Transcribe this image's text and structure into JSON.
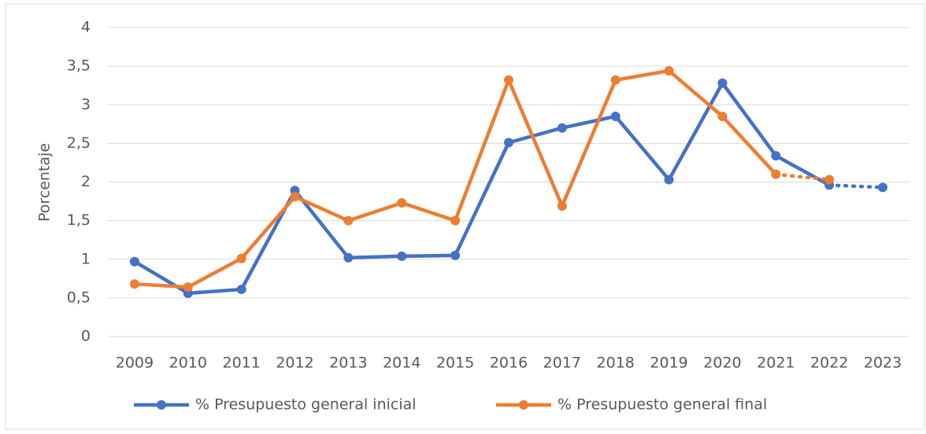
{
  "chart_data": {
    "type": "line",
    "y_label": "Porcentaje",
    "categories": [
      "2009",
      "2010",
      "2011",
      "2012",
      "2013",
      "2014",
      "2015",
      "2016",
      "2017",
      "2018",
      "2019",
      "2020",
      "2021",
      "2022",
      "2023"
    ],
    "series": [
      {
        "name": "% Presupuesto general inicial",
        "color": "#4472c4",
        "dotted_from": 13,
        "values": [
          0.97,
          0.56,
          0.61,
          1.89,
          1.02,
          1.04,
          1.05,
          2.51,
          2.7,
          2.85,
          2.03,
          3.28,
          2.34,
          1.96,
          1.93
        ]
      },
      {
        "name": "% Presupuesto general final",
        "color": "#ed7d31",
        "dotted_from": 12,
        "values": [
          0.68,
          0.64,
          1.01,
          1.81,
          1.5,
          1.73,
          1.5,
          3.32,
          1.69,
          3.32,
          3.44,
          2.85,
          2.1,
          2.03,
          null
        ]
      }
    ],
    "ylim": [
      0,
      4
    ],
    "yticks": [
      0,
      {
        "value": 0.5,
        "label": "0,5"
      },
      1,
      {
        "value": 1.5,
        "label": "1,5"
      },
      2,
      {
        "value": 2.5,
        "label": "2,5"
      },
      3,
      {
        "value": 3.5,
        "label": "3,5"
      },
      4
    ],
    "grid": true,
    "legend": "bottom"
  }
}
